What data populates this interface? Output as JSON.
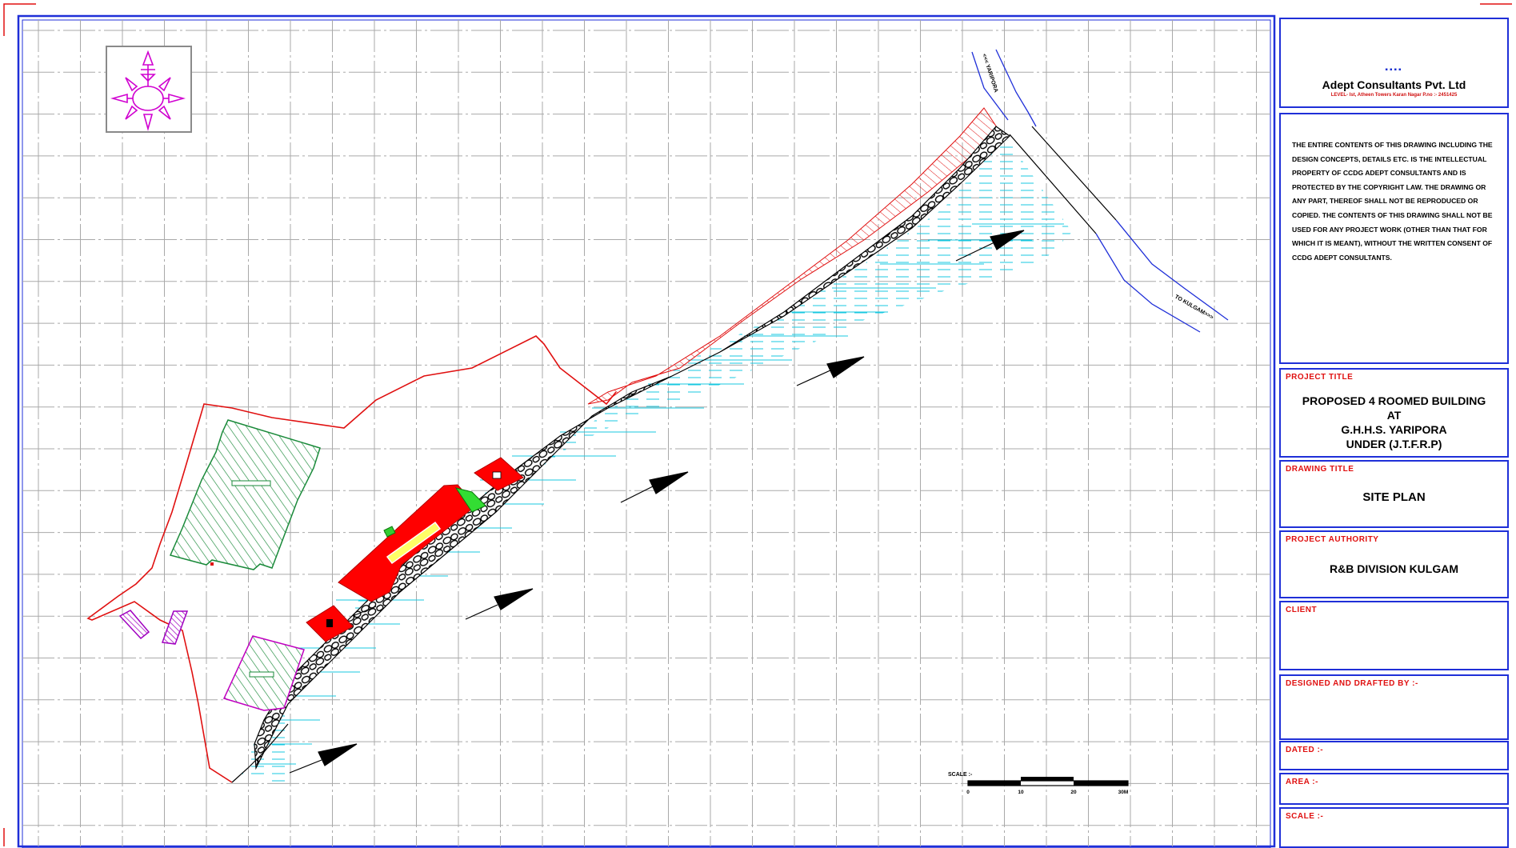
{
  "firm": {
    "logo_letters": "▪▪▪▪",
    "name": "Adept Consultants Pvt. Ltd",
    "address": "LEVEL- Ist, Atheen Towers Karan Nagar P.no :- 2451425"
  },
  "notice": "THE ENTIRE CONTENTS OF THIS DRAWING INCLUDING THE DESIGN CONCEPTS, DETAILS ETC. IS THE INTELLECTUAL PROPERTY OF CCDG ADEPT CONSULTANTS AND IS PROTECTED BY THE COPYRIGHT LAW. THE DRAWING OR ANY PART, THEREOF SHALL NOT BE REPRODUCED OR COPIED. THE CONTENTS OF THIS DRAWING SHALL NOT BE USED FOR ANY PROJECT WORK (OTHER THAN THAT FOR WHICH IT IS MEANT), WITHOUT THE WRITTEN CONSENT OF CCDG ADEPT CONSULTANTS.",
  "project": {
    "heading": "PROJECT TITLE",
    "line1": "PROPOSED 4 ROOMED BUILDING",
    "line2": "AT",
    "line3": "G.H.H.S. YARIPORA",
    "line4": "UNDER (J.T.F.R.P)"
  },
  "drawing": {
    "heading": "DRAWING TITLE",
    "title": "SITE PLAN"
  },
  "authority": {
    "heading": "PROJECT AUTHORITY",
    "name": "R&B DIVISION KULGAM"
  },
  "client": {
    "heading": "CLIENT"
  },
  "designed": {
    "heading": "DESIGNED AND DRAFTED BY :-"
  },
  "dated": {
    "heading": "DATED :-"
  },
  "area": {
    "heading": "AREA :-"
  },
  "scale_box": {
    "heading": "SCALE :-"
  },
  "map": {
    "road_to_yaripora": "<<< YARIPORA",
    "road_to_kulgam": "TO KULGAM>>>",
    "scale_label": "SCALE :-",
    "scale_ticks": [
      "0",
      "10",
      "20",
      "30M"
    ]
  },
  "colors": {
    "border": "#1f2fd8",
    "site_boundary": "#e01010",
    "building_fill": "#ff0000",
    "hatch_green": "#1a8a3a",
    "water": "#18c8e0",
    "compass": "#d000d0"
  }
}
